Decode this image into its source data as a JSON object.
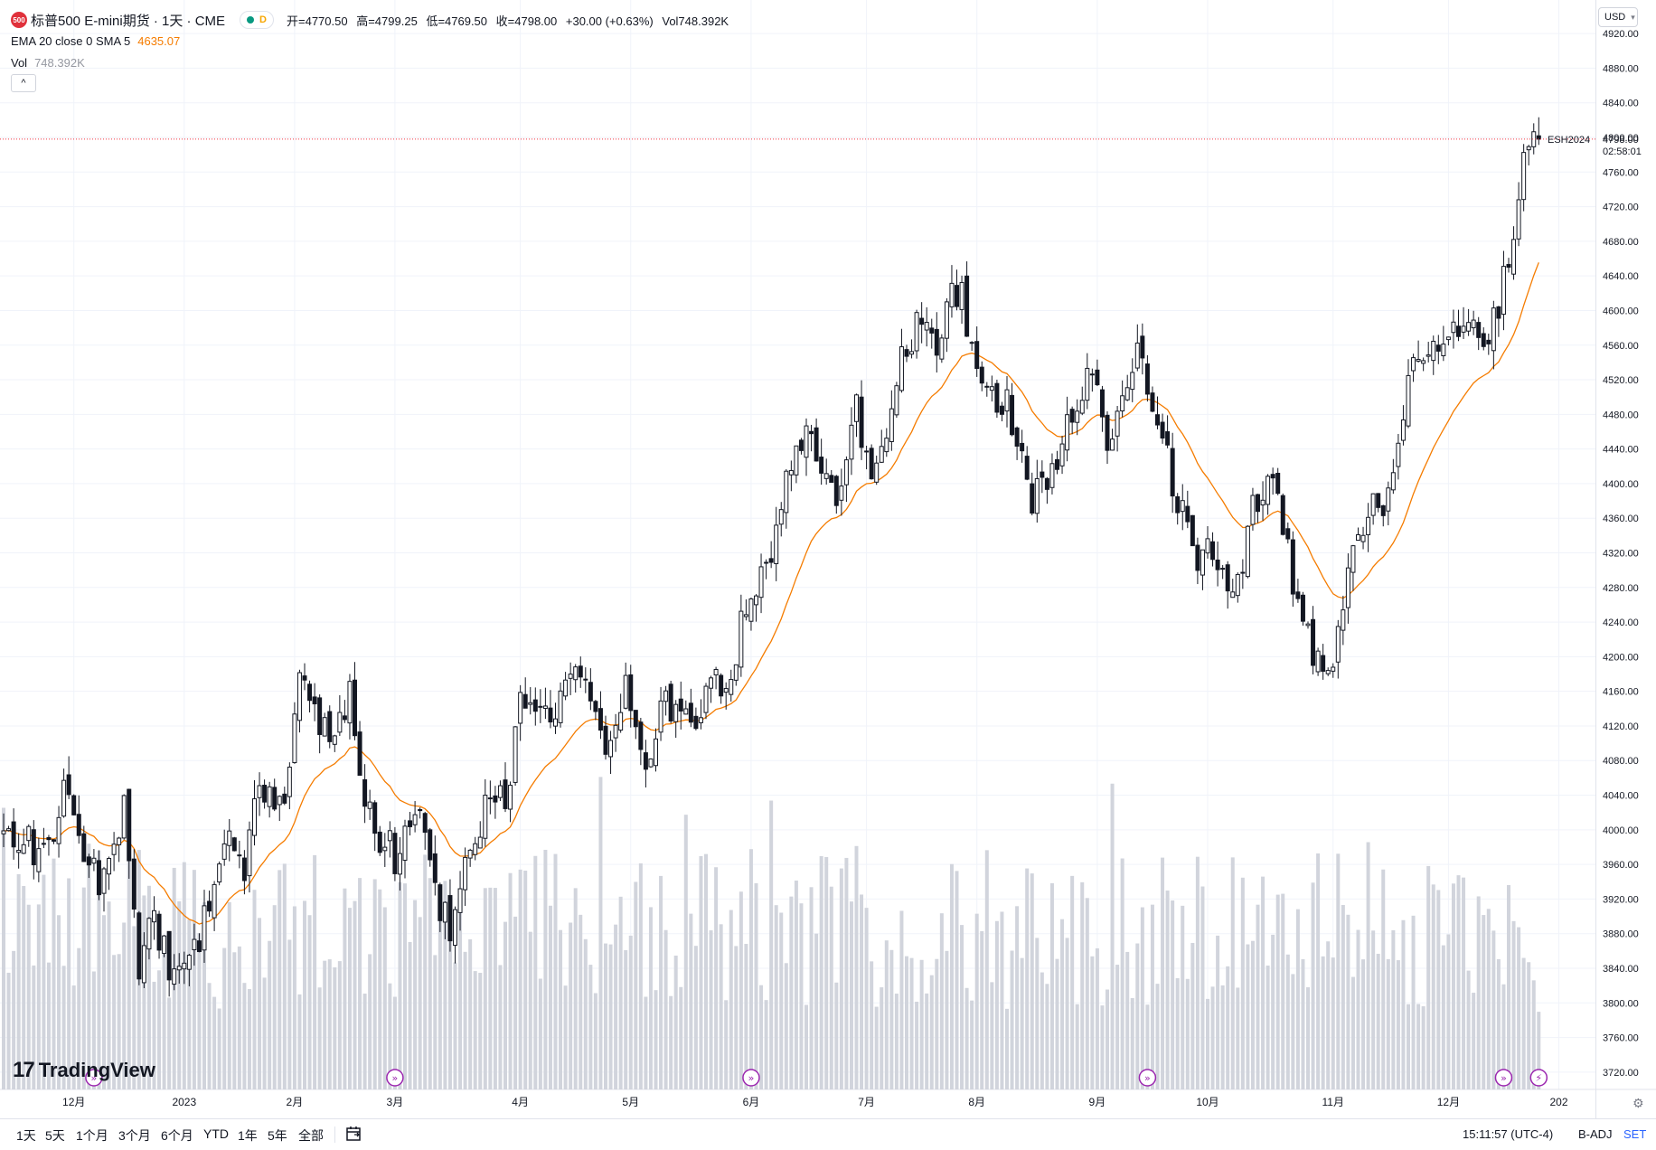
{
  "header": {
    "symbol_badge": "500",
    "symbol_title": "标普500 E-mini期货 · 1天 · CME",
    "delay_label": "D",
    "ohlc": {
      "open": "开=4770.50",
      "high": "高=4799.25",
      "low": "低=4769.50",
      "close": "收=4798.00",
      "change": "+30.00 (+0.63%)",
      "volume": "Vol748.392K"
    },
    "indicator_label": "EMA 20 close 0 SMA 5",
    "indicator_value": "4635.07",
    "volume_label": "Vol",
    "volume_value": "748.392K",
    "collapse_icon": "chevron-up-icon"
  },
  "price_scale": {
    "currency": "USD",
    "last_price_label": "4798.00",
    "countdown": "02:58:01",
    "contract_label": "ESH2024"
  },
  "branding": {
    "logo_text": "TradingView"
  },
  "bottom_bar": {
    "ranges": [
      "1天",
      "5天",
      "1个月",
      "3个月",
      "6个月",
      "YTD",
      "1年",
      "5年",
      "全部"
    ],
    "calendar_icon": "calendar-goto-icon",
    "time": "15:11:57 (UTC-4)",
    "badj": "B-ADJ",
    "set": "SET",
    "settings_icon": "gear-icon"
  },
  "colors": {
    "candle_up": "#ffffff",
    "candle_down": "#131722",
    "candle_border": "#131722",
    "ema_line": "#f57c00",
    "volume_bar": "#d1d4dc",
    "last_price_line": "#f23645",
    "grid": "#f0f3fa",
    "event_marker": "#9c27b0"
  },
  "chart_data": {
    "type": "candlestick",
    "title": "标普500 E-mini期货 · 1天 · CME",
    "ylim": [
      3700,
      4940
    ],
    "y_ticks": [
      3720,
      3760,
      3800,
      3840,
      3880,
      3920,
      3960,
      4000,
      4040,
      4080,
      4120,
      4160,
      4200,
      4240,
      4280,
      4320,
      4360,
      4400,
      4440,
      4480,
      4520,
      4560,
      4600,
      4640,
      4680,
      4720,
      4760,
      4800,
      4840,
      4880,
      4920
    ],
    "y_tick_labels": [
      "3720.00",
      "3760.00",
      "3800.00",
      "3840.00",
      "3880.00",
      "3920.00",
      "3960.00",
      "4000.00",
      "4040.00",
      "4080.00",
      "4120.00",
      "4160.00",
      "4200.00",
      "4240.00",
      "4280.00",
      "4320.00",
      "4360.00",
      "4400.00",
      "4440.00",
      "4480.00",
      "4520.00",
      "4560.00",
      "4600.00",
      "4640.00",
      "4680.00",
      "4720.00",
      "4760.00",
      "4800.00",
      "4840.00",
      "4880.00",
      "4920.00"
    ],
    "x_axis": {
      "total_bars": 330,
      "labels": [
        {
          "text": "12月",
          "bar": 14
        },
        {
          "text": "2023",
          "bar": 36
        },
        {
          "text": "2月",
          "bar": 58
        },
        {
          "text": "3月",
          "bar": 78
        },
        {
          "text": "4月",
          "bar": 103
        },
        {
          "text": "5月",
          "bar": 125
        },
        {
          "text": "6月",
          "bar": 149
        },
        {
          "text": "7月",
          "bar": 172
        },
        {
          "text": "8月",
          "bar": 194
        },
        {
          "text": "9月",
          "bar": 218
        },
        {
          "text": "10月",
          "bar": 240
        },
        {
          "text": "11月",
          "bar": 265
        },
        {
          "text": "12月",
          "bar": 288
        },
        {
          "text": "202",
          "bar": 310
        }
      ]
    },
    "last_price": 4798.0,
    "series_anchors": [
      {
        "bar": 0,
        "close": 3995
      },
      {
        "bar": 8,
        "close": 3975
      },
      {
        "bar": 13,
        "close": 4060
      },
      {
        "bar": 16,
        "close": 3970
      },
      {
        "bar": 20,
        "close": 3940
      },
      {
        "bar": 24,
        "close": 4030
      },
      {
        "bar": 27,
        "close": 3840
      },
      {
        "bar": 30,
        "close": 3900
      },
      {
        "bar": 34,
        "close": 3830
      },
      {
        "bar": 39,
        "close": 3880
      },
      {
        "bar": 44,
        "close": 4000
      },
      {
        "bar": 48,
        "close": 3960
      },
      {
        "bar": 51,
        "close": 4060
      },
      {
        "bar": 56,
        "close": 4020
      },
      {
        "bar": 59,
        "close": 4160
      },
      {
        "bar": 62,
        "close": 4140
      },
      {
        "bar": 65,
        "close": 4100
      },
      {
        "bar": 69,
        "close": 4150
      },
      {
        "bar": 73,
        "close": 4010
      },
      {
        "bar": 77,
        "close": 3980
      },
      {
        "bar": 79,
        "close": 3960
      },
      {
        "bar": 82,
        "close": 4040
      },
      {
        "bar": 86,
        "close": 3920
      },
      {
        "bar": 89,
        "close": 3880
      },
      {
        "bar": 93,
        "close": 3990
      },
      {
        "bar": 96,
        "close": 4020
      },
      {
        "bar": 100,
        "close": 4040
      },
      {
        "bar": 103,
        "close": 4140
      },
      {
        "bar": 107,
        "close": 4130
      },
      {
        "bar": 110,
        "close": 4150
      },
      {
        "bar": 114,
        "close": 4170
      },
      {
        "bar": 118,
        "close": 4150
      },
      {
        "bar": 121,
        "close": 4090
      },
      {
        "bar": 124,
        "close": 4180
      },
      {
        "bar": 128,
        "close": 4080
      },
      {
        "bar": 131,
        "close": 4150
      },
      {
        "bar": 134,
        "close": 4140
      },
      {
        "bar": 138,
        "close": 4120
      },
      {
        "bar": 141,
        "close": 4190
      },
      {
        "bar": 144,
        "close": 4160
      },
      {
        "bar": 147,
        "close": 4240
      },
      {
        "bar": 150,
        "close": 4290
      },
      {
        "bar": 153,
        "close": 4300
      },
      {
        "bar": 154,
        "close": 4340
      },
      {
        "bar": 157,
        "close": 4430
      },
      {
        "bar": 160,
        "close": 4470
      },
      {
        "bar": 163,
        "close": 4400
      },
      {
        "bar": 166,
        "close": 4370
      },
      {
        "bar": 170,
        "close": 4480
      },
      {
        "bar": 173,
        "close": 4420
      },
      {
        "bar": 176,
        "close": 4470
      },
      {
        "bar": 179,
        "close": 4560
      },
      {
        "bar": 182,
        "close": 4580
      },
      {
        "bar": 186,
        "close": 4570
      },
      {
        "bar": 189,
        "close": 4610
      },
      {
        "bar": 191,
        "close": 4620
      },
      {
        "bar": 193,
        "close": 4560
      },
      {
        "bar": 196,
        "close": 4510
      },
      {
        "bar": 199,
        "close": 4500
      },
      {
        "bar": 202,
        "close": 4460
      },
      {
        "bar": 205,
        "close": 4380
      },
      {
        "bar": 208,
        "close": 4400
      },
      {
        "bar": 211,
        "close": 4450
      },
      {
        "bar": 214,
        "close": 4500
      },
      {
        "bar": 217,
        "close": 4530
      },
      {
        "bar": 220,
        "close": 4440
      },
      {
        "bar": 223,
        "close": 4510
      },
      {
        "bar": 226,
        "close": 4550
      },
      {
        "bar": 229,
        "close": 4500
      },
      {
        "bar": 232,
        "close": 4430
      },
      {
        "bar": 235,
        "close": 4360
      },
      {
        "bar": 238,
        "close": 4300
      },
      {
        "bar": 241,
        "close": 4330
      },
      {
        "bar": 244,
        "close": 4270
      },
      {
        "bar": 247,
        "close": 4320
      },
      {
        "bar": 250,
        "close": 4390
      },
      {
        "bar": 253,
        "close": 4400
      },
      {
        "bar": 255,
        "close": 4350
      },
      {
        "bar": 257,
        "close": 4290
      },
      {
        "bar": 260,
        "close": 4230
      },
      {
        "bar": 263,
        "close": 4170
      },
      {
        "bar": 265,
        "close": 4180
      },
      {
        "bar": 267,
        "close": 4250
      },
      {
        "bar": 269,
        "close": 4320
      },
      {
        "bar": 272,
        "close": 4380
      },
      {
        "bar": 275,
        "close": 4370
      },
      {
        "bar": 278,
        "close": 4440
      },
      {
        "bar": 280,
        "close": 4520
      },
      {
        "bar": 283,
        "close": 4530
      },
      {
        "bar": 286,
        "close": 4560
      },
      {
        "bar": 289,
        "close": 4570
      },
      {
        "bar": 292,
        "close": 4580
      },
      {
        "bar": 295,
        "close": 4570
      },
      {
        "bar": 297,
        "close": 4580
      },
      {
        "bar": 299,
        "close": 4640
      },
      {
        "bar": 301,
        "close": 4700
      },
      {
        "bar": 303,
        "close": 4770
      },
      {
        "bar": 305,
        "close": 4790
      },
      {
        "bar": 306,
        "close": 4798
      }
    ],
    "ema_period": 20,
    "volume_range": [
      0,
      260000
    ],
    "event_markers": [
      {
        "bar": 18,
        "kind": "dividend"
      },
      {
        "bar": 78,
        "kind": "dividend"
      },
      {
        "bar": 149,
        "kind": "dividend"
      },
      {
        "bar": 228,
        "kind": "dividend"
      },
      {
        "bar": 299,
        "kind": "dividend"
      },
      {
        "bar": 306,
        "kind": "split"
      }
    ]
  }
}
